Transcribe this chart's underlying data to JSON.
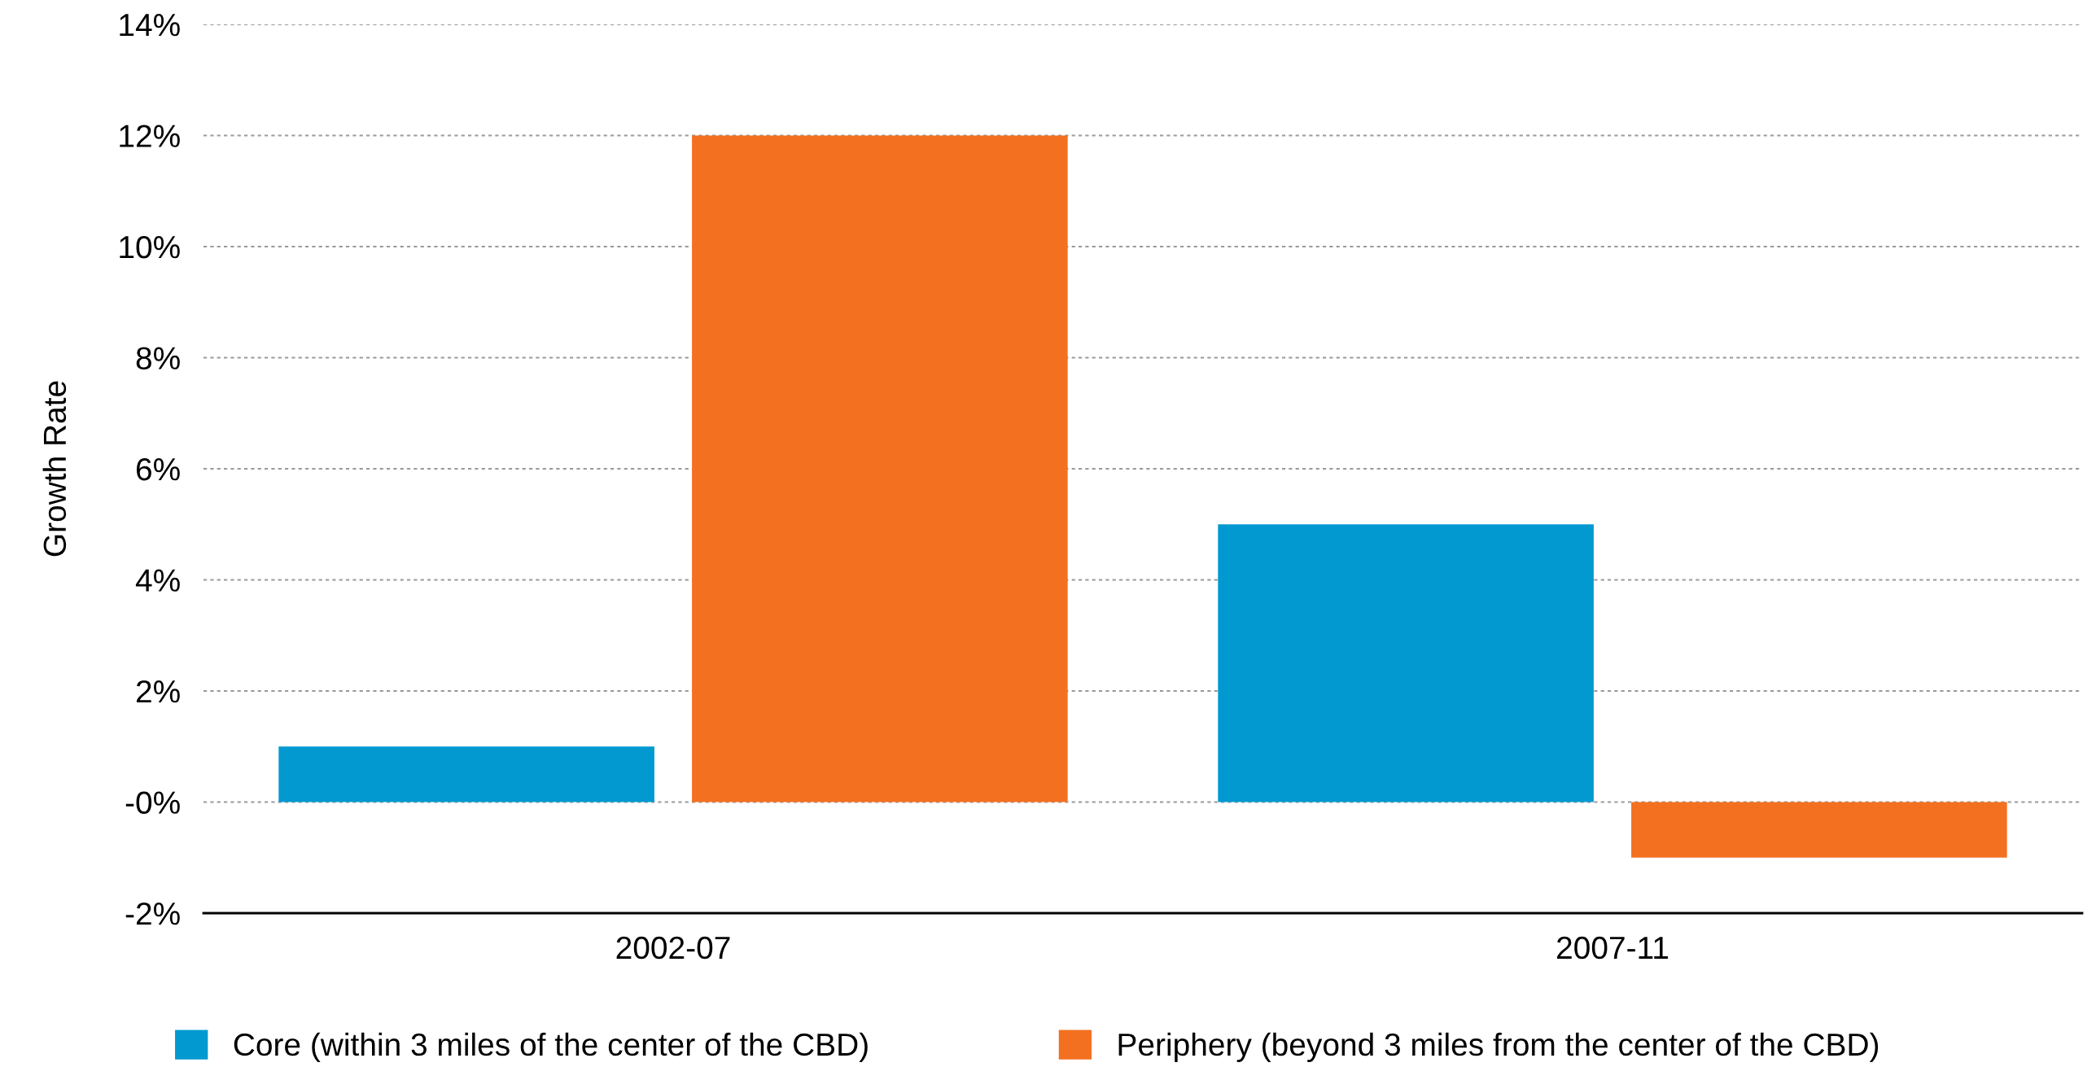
{
  "chart_data": {
    "type": "bar",
    "ylabel": "Growth Rate",
    "categories": [
      "2002-07",
      "2007-11"
    ],
    "series": [
      {
        "name": "Core (within 3 miles of the center of the CBD)",
        "color": "#0299d1",
        "values": [
          1,
          5
        ]
      },
      {
        "name": "Periphery (beyond 3 miles from the center of the CBD)",
        "color": "#f37021",
        "values": [
          12,
          -1
        ]
      }
    ],
    "ylim": [
      -2,
      14
    ],
    "yticks": [
      {
        "value": -2,
        "label": "-2%"
      },
      {
        "value": 0,
        "label": "-0%"
      },
      {
        "value": 2,
        "label": "2%"
      },
      {
        "value": 4,
        "label": "4%"
      },
      {
        "value": 6,
        "label": "6%"
      },
      {
        "value": 8,
        "label": "8%"
      },
      {
        "value": 10,
        "label": "10%"
      },
      {
        "value": 12,
        "label": "12%"
      },
      {
        "value": 14,
        "label": "14%"
      }
    ],
    "grid": "y",
    "legend": "bottom"
  }
}
